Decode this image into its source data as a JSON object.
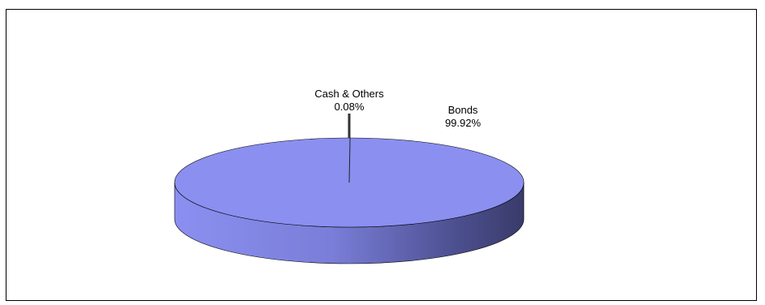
{
  "chart_data": {
    "type": "pie",
    "style": "3d",
    "slices": [
      {
        "name": "Bonds",
        "value": 99.92,
        "label": "99.92%",
        "color": "#8b8ff0"
      },
      {
        "name": "Cash & Others",
        "value": 0.08,
        "label": "0.08%",
        "color": "#333333"
      }
    ],
    "title": "",
    "legend": "none"
  },
  "colors": {
    "top_face": "#8b8ff0",
    "side_light": "#8b8ff0",
    "side_dark": "#3a3c6e",
    "outline": "#000000"
  }
}
